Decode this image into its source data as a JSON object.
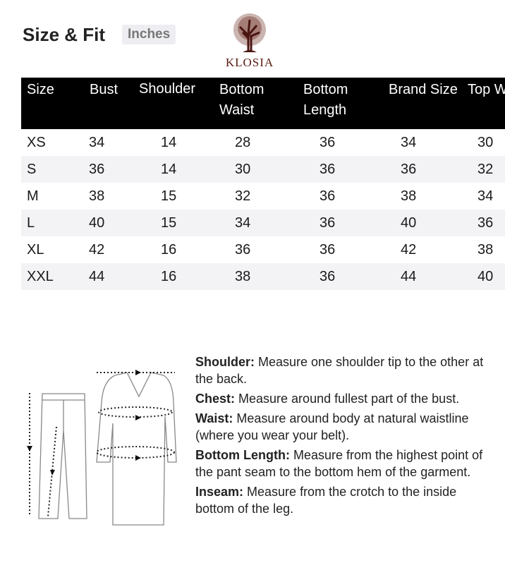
{
  "header": {
    "title": "Size & Fit",
    "unit": "Inches",
    "brand": "KLOSIA"
  },
  "table": {
    "columns": [
      "Size",
      "Bust",
      "Shoulder",
      "Bottom Waist",
      "Bottom Length",
      "Brand Size",
      "Top Waist"
    ],
    "rows": [
      [
        "XS",
        "34",
        "14",
        "28",
        "36",
        "34",
        "30"
      ],
      [
        "S",
        "36",
        "14",
        "30",
        "36",
        "36",
        "32"
      ],
      [
        "M",
        "38",
        "15",
        "32",
        "36",
        "38",
        "34"
      ],
      [
        "L",
        "40",
        "15",
        "34",
        "36",
        "40",
        "36"
      ],
      [
        "XL",
        "42",
        "16",
        "36",
        "36",
        "42",
        "38"
      ],
      [
        "XXL",
        "44",
        "16",
        "38",
        "36",
        "44",
        "40"
      ]
    ]
  },
  "guide": [
    {
      "term": "Shoulder:",
      "text": " Measure one shoulder tip to the other at the back."
    },
    {
      "term": "Chest:",
      "text": " Measure around fullest  part of the bust."
    },
    {
      "term": "Waist:",
      "text": " Measure around body at natural waistline (where you wear your belt)."
    },
    {
      "term": "Bottom Length:",
      "text": " Measure from the highest point of the pant seam to the bottom hem of the garment."
    },
    {
      "term": "Inseam:",
      "text": " Measure from the crotch to the inside bottom of the leg."
    }
  ],
  "colors": {
    "header_bg": "#000000",
    "stripe": "#f3f3f6",
    "brand": "#5a1a12"
  }
}
